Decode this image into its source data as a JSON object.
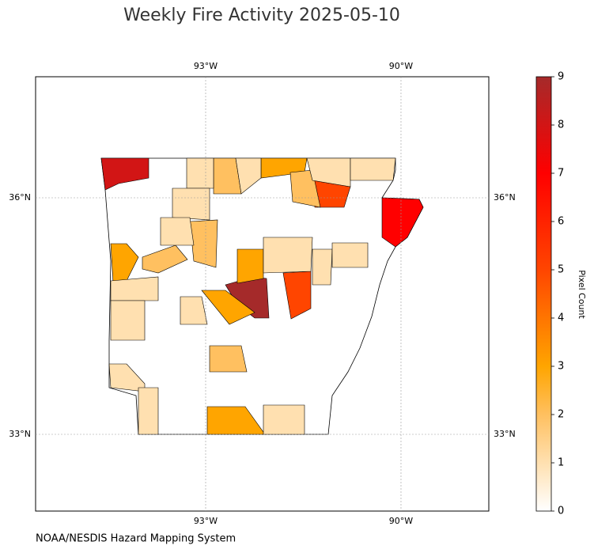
{
  "title": "Weekly Fire Activity 2025-05-10",
  "map": {
    "lon_ticks": [
      {
        "value": -93,
        "label": "93°W"
      },
      {
        "value": -90,
        "label": "90°W"
      }
    ],
    "lat_ticks": [
      {
        "value": 36,
        "label": "36°N"
      },
      {
        "value": 33,
        "label": "33°N"
      }
    ],
    "counties": [
      8,
      7,
      5,
      9,
      5,
      3,
      3,
      3,
      3,
      3,
      2,
      2,
      2,
      2,
      2,
      1,
      1,
      1,
      1,
      1,
      1,
      1,
      1,
      1,
      1,
      1,
      1,
      1,
      1,
      1
    ]
  },
  "colorbar": {
    "label": "Pixel Count",
    "lim": [
      0,
      9
    ],
    "ticks": [
      0,
      1,
      2,
      3,
      4,
      5,
      6,
      7,
      8,
      9
    ]
  },
  "source": "NOAA/NESDIS Hazard Mapping System"
}
